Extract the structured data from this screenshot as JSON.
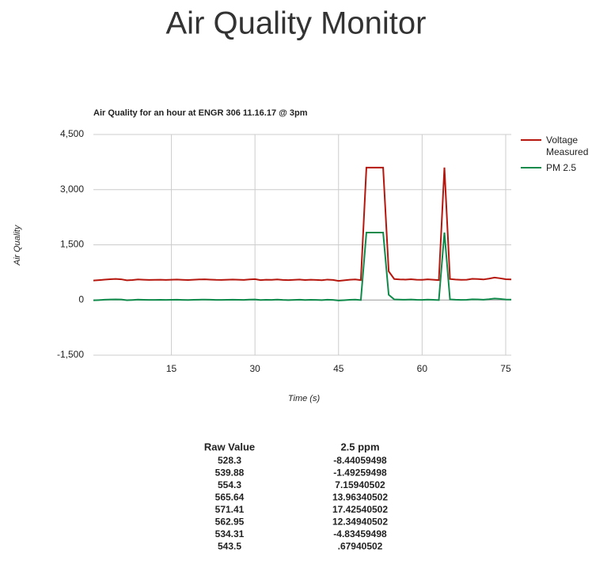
{
  "header": {
    "title": "Air Quality Monitor"
  },
  "chart_data": {
    "type": "line",
    "title": "Air Quality for an hour at ENGR 306 11.16.17 @ 3pm",
    "x_label": "Time (s)",
    "y_label": "Air Quality",
    "x": [
      1,
      2,
      3,
      4,
      5,
      6,
      7,
      8,
      9,
      10,
      11,
      12,
      13,
      14,
      15,
      16,
      17,
      18,
      19,
      20,
      21,
      22,
      23,
      24,
      25,
      26,
      27,
      28,
      29,
      30,
      31,
      32,
      33,
      34,
      35,
      36,
      37,
      38,
      39,
      40,
      41,
      42,
      43,
      44,
      45,
      46,
      47,
      48,
      49,
      50,
      51,
      52,
      53,
      54,
      55,
      56,
      57,
      58,
      59,
      60,
      61,
      62,
      63,
      64,
      65,
      66,
      67,
      68,
      69,
      70,
      71,
      72,
      73,
      74,
      75,
      76
    ],
    "series": [
      {
        "name": "Voltage Measured",
        "color": "#b5160e",
        "values": [
          528.3,
          539.88,
          554.3,
          565.64,
          571.41,
          562.95,
          534.31,
          543.5,
          558,
          551,
          545,
          548,
          552,
          547,
          550,
          556,
          549,
          544,
          551,
          558,
          562,
          555,
          548,
          546,
          550,
          557,
          552,
          545,
          560,
          566,
          541,
          552,
          549,
          558,
          546,
          540,
          549,
          556,
          543,
          551,
          547,
          539,
          555,
          546,
          520,
          535,
          552,
          560,
          540,
          3600,
          3600,
          3600,
          3600,
          780,
          570,
          560,
          555,
          565,
          552,
          548,
          562,
          551,
          540,
          3600,
          570,
          556,
          548,
          552,
          575,
          569,
          558,
          580,
          610,
          590,
          565,
          560
        ]
      },
      {
        "name": "PM 2.5",
        "color": "#0f8a4a",
        "values": [
          -8.44,
          -1.49,
          7.16,
          13.96,
          17.43,
          12.35,
          -4.83,
          0.68,
          9.4,
          5.2,
          1.6,
          3.4,
          5.8,
          2.8,
          4.6,
          8.2,
          4.0,
          1.0,
          5.2,
          9.4,
          11.8,
          7.6,
          3.4,
          2.2,
          4.6,
          8.8,
          5.8,
          1.6,
          10.6,
          14.2,
          -0.8,
          5.8,
          4.0,
          9.4,
          2.2,
          -1.4,
          4.0,
          8.2,
          0.4,
          5.2,
          2.8,
          -2.0,
          7.6,
          2.2,
          -13.4,
          -4.4,
          5.8,
          10.6,
          -1.4,
          1834.6,
          1834.6,
          1834.6,
          1834.6,
          142.6,
          16.6,
          10.6,
          7.6,
          13.6,
          5.8,
          3.4,
          11.8,
          5.2,
          -1.4,
          1834.6,
          16.6,
          8.2,
          3.4,
          5.8,
          19.6,
          16.0,
          9.4,
          22.6,
          40.6,
          28.6,
          13.6,
          10.6
        ]
      }
    ],
    "xlim": [
      1,
      76
    ],
    "xticks": [
      15,
      30,
      45,
      60,
      75
    ],
    "ylim": [
      -1500,
      4500
    ],
    "yticks": [
      {
        "value": -1500,
        "label": "-1,500"
      },
      0,
      {
        "value": 1500,
        "label": "1,500"
      },
      {
        "value": 3000,
        "label": "3,000"
      },
      {
        "value": 4500,
        "label": "4,500"
      }
    ],
    "grid": true,
    "legend": "right"
  },
  "table": {
    "header": [
      "Raw Value",
      "2.5 ppm"
    ],
    "rows": [
      [
        "528.3",
        "-8.44059498"
      ],
      [
        "539.88",
        "-1.49259498"
      ],
      [
        "554.3",
        "7.15940502"
      ],
      [
        "565.64",
        "13.96340502"
      ],
      [
        "571.41",
        "17.42540502"
      ],
      [
        "562.95",
        "12.34940502"
      ],
      [
        "534.31",
        "-4.83459498"
      ],
      [
        "543.5",
        ".67940502"
      ]
    ]
  }
}
